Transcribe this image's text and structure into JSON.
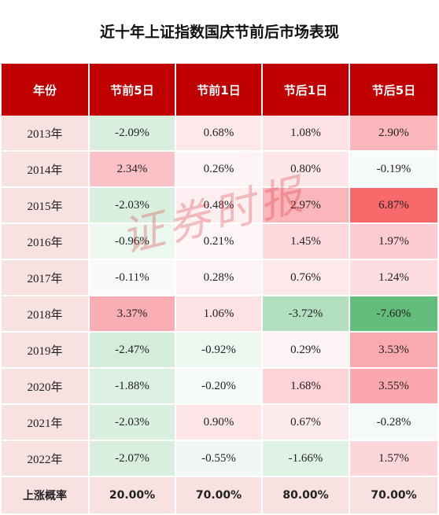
{
  "title": "近十年上证指数国庆节前后市场表现",
  "headers": [
    "年份",
    "节前5日",
    "节前1日",
    "节后1日",
    "节后5日"
  ],
  "rows": [
    {
      "year": "2013年",
      "cells": [
        {
          "v": "-2.09%",
          "c": "#d8efe0"
        },
        {
          "v": "0.68%",
          "c": "#fde9ec"
        },
        {
          "v": "1.08%",
          "c": "#fde1e5"
        },
        {
          "v": "2.90%",
          "c": "#fbb7bc"
        }
      ]
    },
    {
      "year": "2014年",
      "cells": [
        {
          "v": "2.34%",
          "c": "#fbc1c6"
        },
        {
          "v": "0.26%",
          "c": "#fdf4f6"
        },
        {
          "v": "0.80%",
          "c": "#fde7ea"
        },
        {
          "v": "-0.19%",
          "c": "#f7fafa"
        }
      ]
    },
    {
      "year": "2015年",
      "cells": [
        {
          "v": "-2.03%",
          "c": "#d9f0e1"
        },
        {
          "v": "0.48%",
          "c": "#fdeff1"
        },
        {
          "v": "2.97%",
          "c": "#fbb6bb"
        },
        {
          "v": "6.87%",
          "c": "#f8696b"
        }
      ]
    },
    {
      "year": "2016年",
      "cells": [
        {
          "v": "-0.96%",
          "c": "#ebf7ef"
        },
        {
          "v": "0.21%",
          "c": "#fdf5f7"
        },
        {
          "v": "1.45%",
          "c": "#fdd9dd"
        },
        {
          "v": "1.97%",
          "c": "#fcccd1"
        }
      ]
    },
    {
      "year": "2017年",
      "cells": [
        {
          "v": "-0.11%",
          "c": "#f8fafb"
        },
        {
          "v": "0.28%",
          "c": "#fdf3f5"
        },
        {
          "v": "0.76%",
          "c": "#fde8eb"
        },
        {
          "v": "1.24%",
          "c": "#fdddE1"
        }
      ]
    },
    {
      "year": "2018年",
      "cells": [
        {
          "v": "3.37%",
          "c": "#faadb2"
        },
        {
          "v": "1.06%",
          "c": "#fde1e5"
        },
        {
          "v": "-3.72%",
          "c": "#b2dfc0"
        },
        {
          "v": "-7.60%",
          "c": "#63be7b"
        }
      ]
    },
    {
      "year": "2019年",
      "cells": [
        {
          "v": "-2.47%",
          "c": "#d4ecdc"
        },
        {
          "v": "-0.92%",
          "c": "#ecf7f0"
        },
        {
          "v": "0.29%",
          "c": "#fdf3f5"
        },
        {
          "v": "3.53%",
          "c": "#faa9ae"
        }
      ]
    },
    {
      "year": "2020年",
      "cells": [
        {
          "v": "-1.88%",
          "c": "#dcf1e3"
        },
        {
          "v": "-0.20%",
          "c": "#f6fafa"
        },
        {
          "v": "1.68%",
          "c": "#fcd3d7"
        },
        {
          "v": "3.55%",
          "c": "#faa8ad"
        }
      ]
    },
    {
      "year": "2021年",
      "cells": [
        {
          "v": "-2.03%",
          "c": "#d9f0e1"
        },
        {
          "v": "0.90%",
          "c": "#fde5e8"
        },
        {
          "v": "0.67%",
          "c": "#fdeaec"
        },
        {
          "v": "-0.28%",
          "c": "#f5f9f9"
        }
      ]
    },
    {
      "year": "2022年",
      "cells": [
        {
          "v": "-2.07%",
          "c": "#d8efe0"
        },
        {
          "v": "-0.55%",
          "c": "#f1f8f4"
        },
        {
          "v": "-1.66%",
          "c": "#e0f2e6"
        },
        {
          "v": "1.57%",
          "c": "#fdd6da"
        }
      ]
    }
  ],
  "summary": {
    "label": "上涨概率",
    "values": [
      "20.00%",
      "70.00%",
      "80.00%",
      "70.00%"
    ]
  },
  "watermark": "证券时报",
  "colors": {
    "header_bg": "#c00000",
    "year_bg": "#f7e1e1",
    "summary_bg": "#f7e1e1"
  }
}
